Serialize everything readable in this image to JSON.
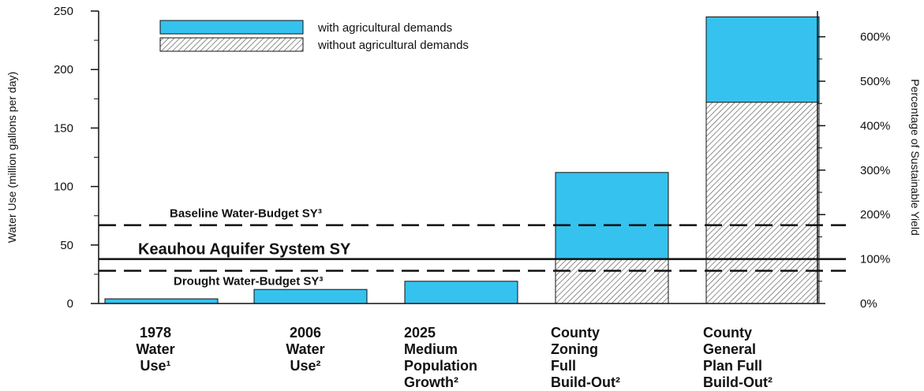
{
  "chart_data": {
    "type": "bar",
    "stacked_overlay": true,
    "categories": [
      [
        "1978",
        "Water",
        "Use¹"
      ],
      [
        "2006",
        "Water",
        "Use²"
      ],
      [
        "2025",
        "Medium",
        "Population",
        "Growth²"
      ],
      [
        "County",
        "Zoning",
        "Full",
        "Build-Out²"
      ],
      [
        "County",
        "General",
        "Plan Full",
        "Build-Out²"
      ]
    ],
    "series": [
      {
        "name": "with agricultural demands",
        "values": [
          4,
          12,
          19,
          112,
          245
        ]
      },
      {
        "name": "without agricultural demands",
        "values": [
          null,
          null,
          null,
          38,
          172
        ]
      }
    ],
    "ylabel": "Water Use (million gallons per day)",
    "y2label": "Percentage of Sustainable Yield",
    "ylim": [
      0,
      250
    ],
    "yticks": [
      "0",
      "50",
      "100",
      "150",
      "200",
      "250"
    ],
    "y2ticks": [
      "0%",
      "100%",
      "200%",
      "300%",
      "400%",
      "500%",
      "600%"
    ],
    "y2_unit_value": 38,
    "reference_lines": [
      {
        "label": "Baseline Water-Budget SY³",
        "value": 67,
        "style": "dashed"
      },
      {
        "label": "Keauhou Aquifer System SY",
        "value": 38,
        "style": "solid"
      },
      {
        "label": "Drought Water-Budget SY³",
        "value": 28,
        "style": "dashed"
      }
    ],
    "colors": {
      "with": "#35c2ee",
      "hatch": "#555555"
    },
    "legend_position": "top-left",
    "grid": false
  }
}
